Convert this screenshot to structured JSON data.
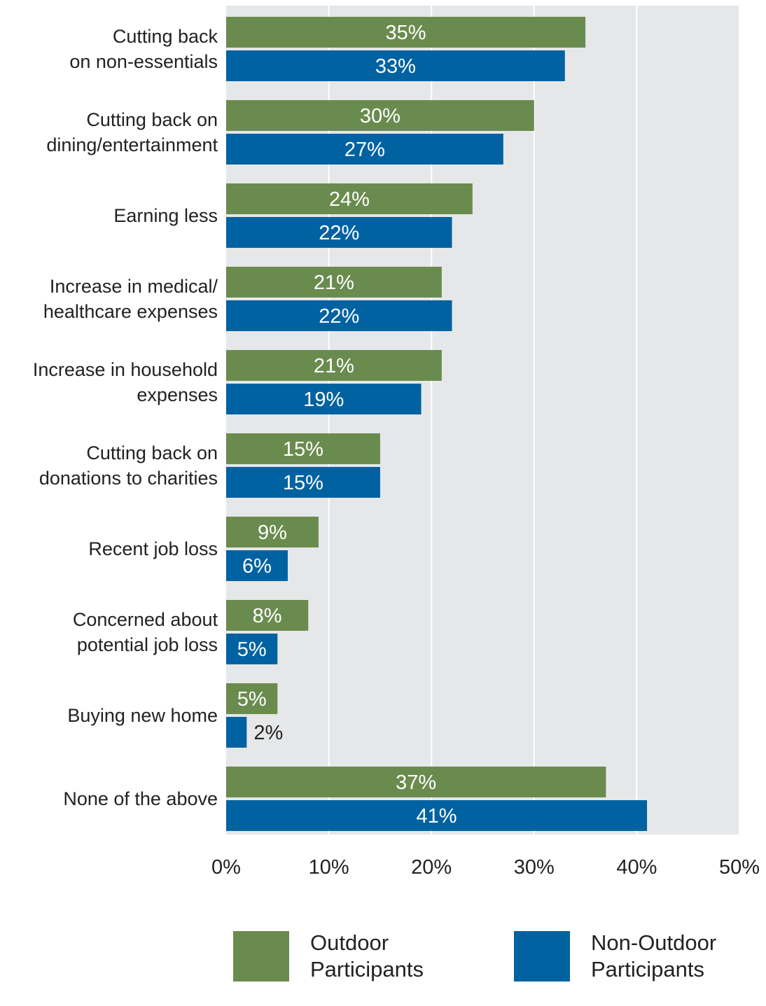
{
  "chart_data": {
    "type": "bar",
    "orientation": "horizontal",
    "categories": [
      [
        "Cutting back",
        "on non-essentials"
      ],
      [
        "Cutting back on",
        "dining/entertainment"
      ],
      [
        "Earning less"
      ],
      [
        "Increase in medical/",
        "healthcare expenses"
      ],
      [
        "Increase in household",
        "expenses"
      ],
      [
        "Cutting back on",
        "donations to charities"
      ],
      [
        "Recent job loss"
      ],
      [
        "Concerned about",
        "potential job loss"
      ],
      [
        "Buying new home"
      ],
      [
        "None of the above"
      ]
    ],
    "series": [
      {
        "name": "Outdoor Participants",
        "color": "#6a8b4e",
        "values": [
          35,
          30,
          24,
          21,
          21,
          15,
          9,
          8,
          5,
          37
        ]
      },
      {
        "name": "Non-Outdoor Participants",
        "color": "#0062a1",
        "values": [
          33,
          27,
          22,
          22,
          19,
          15,
          6,
          5,
          2,
          41
        ]
      }
    ],
    "value_suffix": "%",
    "xlim": [
      0,
      50
    ],
    "xticks": [
      0,
      10,
      20,
      30,
      40,
      50
    ],
    "xtick_labels": [
      "0%",
      "10%",
      "20%",
      "30%",
      "40%",
      "50%"
    ],
    "grid": true,
    "plot_background": "#e6e7e8",
    "legend_position": "bottom"
  },
  "legend": {
    "outdoor": {
      "line1": "Outdoor",
      "line2": "Participants",
      "color": "#6a8b4e"
    },
    "non_outdoor": {
      "line1": "Non-Outdoor",
      "line2": "Participants",
      "color": "#0062a1"
    }
  }
}
